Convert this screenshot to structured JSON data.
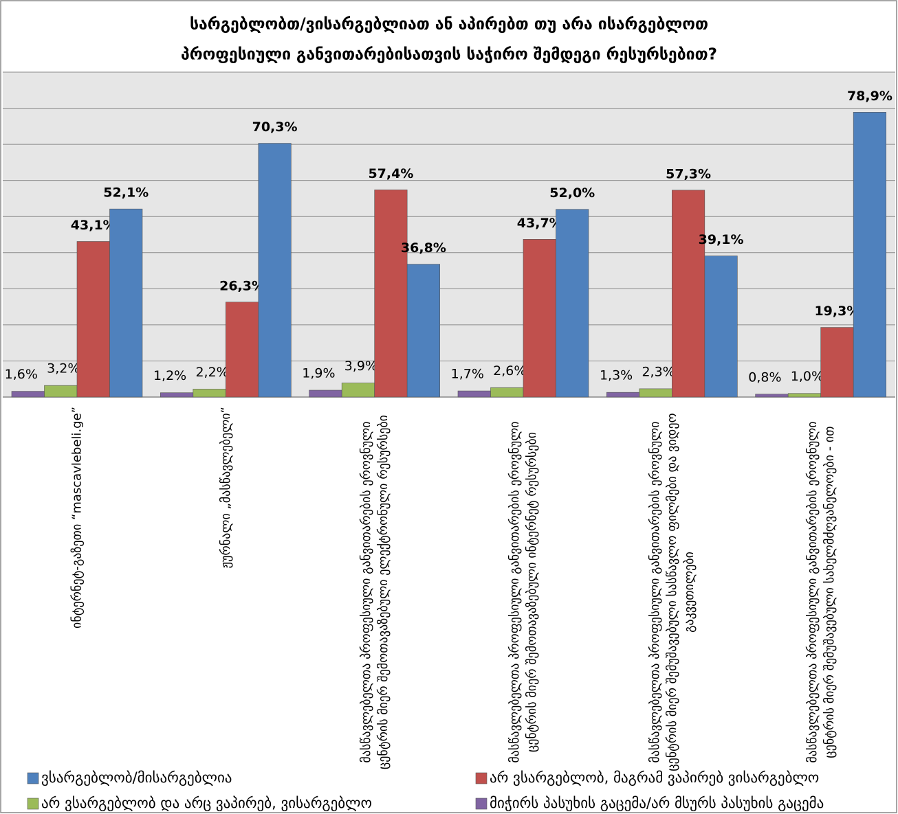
{
  "chart_data": {
    "type": "bar",
    "title": [
      "სარგებლობთ/ვისარგებლიათ ან აპირებთ თუ არა ისარგებლოთ",
      "პროფესიული განვითარებისათვის საჭირო შემდეგი რესურსებით?"
    ],
    "categories": [
      "ინტერნეტ-გაზეთი   “mascavlebeli.ge”",
      "ჟურნალი „მასწავლებელი“",
      "მასწავლებელთა პროფესიული განვითარების ეროვნული ცენტრის მიერ შემოთავაზებული ელექტრონული რესურსები",
      "მასწავლებელთა პროფესიული  განვითარების ეროვნული ცენტრის მიერ შემოთავაზებული ინტერნეტ რესურსები",
      "მასწავლებელთა პროფესიული განვითარების ეროვნული ცენტრის მიერ შემუშავებული სასწავლო ფილმები და ვიდეო გაკვეთილები",
      "მასწავლებელთა პროფესიული განვითარების ეროვნული ცენტრის მიერ შემუშავებული სახელმძღვანელოები - ით"
    ],
    "series": [
      {
        "name": "მიჭირს პასუხის გაცემა/არ მსურს პასუხის გაცემა",
        "color": "#8064a2",
        "values": [
          1.6,
          1.2,
          1.9,
          1.7,
          1.3,
          0.8
        ],
        "value_labels": [
          "1,6%",
          "1,2%",
          "1,9%",
          "1,7%",
          "1,3%",
          "0,8%"
        ]
      },
      {
        "name": "არ ვსარგებლობ და არც ვაპირებ, ვისარგებლო",
        "color": "#9bbb59",
        "values": [
          3.2,
          2.2,
          3.9,
          2.6,
          2.3,
          1.0
        ],
        "value_labels": [
          "3,2%",
          "2,2%",
          "3,9%",
          "2,6%",
          "2,3%",
          "1,0%"
        ]
      },
      {
        "name": "არ ვსარგებლობ, მაგრამ ვაპირებ ვისარგებლო",
        "color": "#c0504d",
        "values": [
          43.1,
          26.3,
          57.4,
          43.7,
          57.3,
          19.3
        ],
        "value_labels": [
          "43,1%",
          "26,3%",
          "57,4%",
          "43,7%",
          "57,3%",
          "19,3%"
        ]
      },
      {
        "name": "ვსარგებლობ/მისარგებლია",
        "color": "#4f81bd",
        "values": [
          52.1,
          70.3,
          36.8,
          52.0,
          39.1,
          78.9
        ],
        "value_labels": [
          "52,1%",
          "70,3%",
          "36,8%",
          "52,0%",
          "39,1%",
          "78,9%"
        ]
      }
    ],
    "ylim": [
      0,
      90
    ],
    "yticks": [
      0,
      10,
      20,
      30,
      40,
      50,
      60,
      70,
      80,
      90
    ],
    "grid": true
  }
}
